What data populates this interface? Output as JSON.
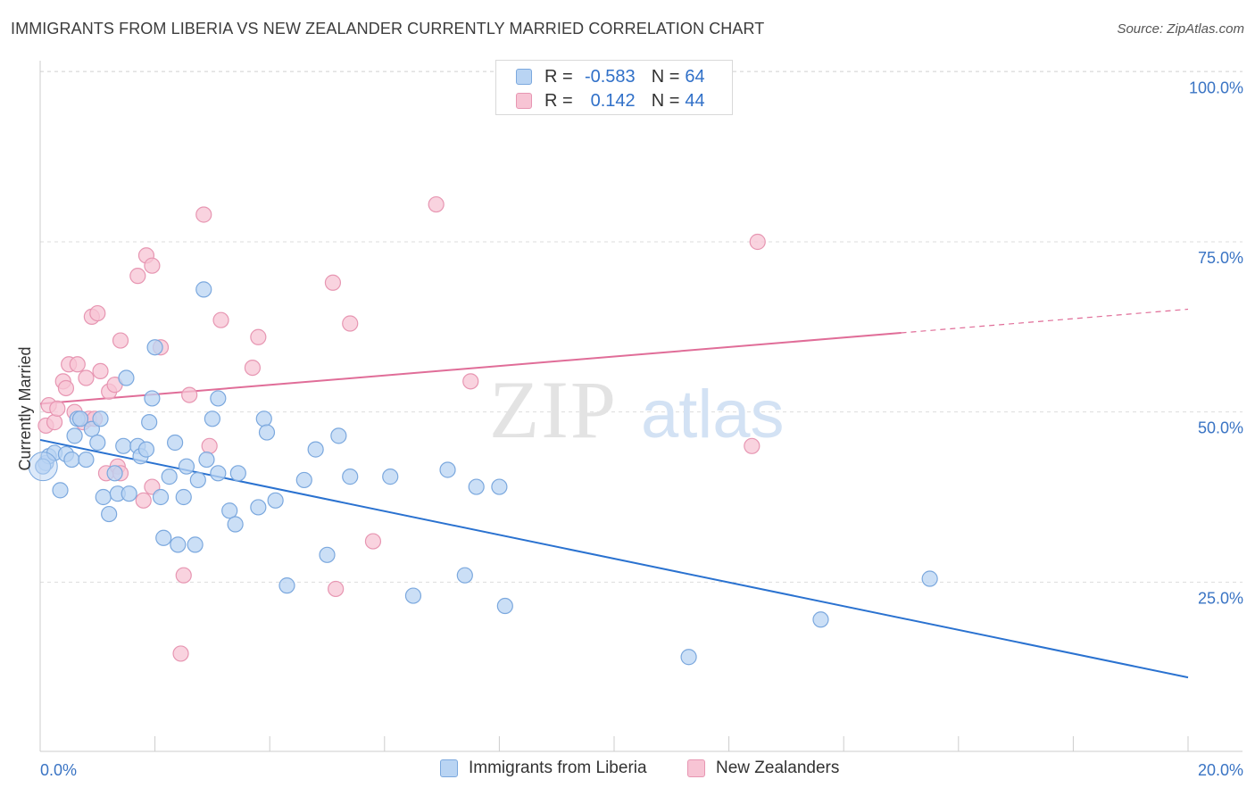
{
  "title": "IMMIGRANTS FROM LIBERIA VS NEW ZEALANDER CURRENTLY MARRIED CORRELATION CHART",
  "source": "Source: ZipAtlas.com",
  "watermark": {
    "zip": "ZIP",
    "atlas": "atlas"
  },
  "legend_top": {
    "rows": [
      {
        "r_label": "R = ",
        "r_value": "-0.583",
        "n_label": "N = ",
        "n_value": "64"
      },
      {
        "r_label": "R = ",
        "r_value": "0.142",
        "n_label": "N = ",
        "n_value": "44"
      }
    ]
  },
  "colors": {
    "blue_fill": "#b9d4f3",
    "blue_stroke": "#7ba8de",
    "blue_line": "#2a72d0",
    "pink_fill": "#f7c4d4",
    "pink_stroke": "#e796b2",
    "pink_line": "#e06d98",
    "grid": "#dddddd",
    "axis_text": "#3a74c4"
  },
  "chart_data": {
    "type": "scatter",
    "ylabel": "Currently Married",
    "xlim": [
      0,
      20
    ],
    "ylim": [
      0,
      105
    ],
    "x_tick_labels": [
      "0.0%",
      "20.0%"
    ],
    "y_tick_labels": [
      "25.0%",
      "50.0%",
      "75.0%",
      "100.0%"
    ],
    "y_ticks": [
      25,
      50,
      75,
      100
    ],
    "grid": true,
    "legend_position": "bottom",
    "series": [
      {
        "name": "Immigrants from Liberia",
        "color": "#b9d4f3",
        "trend": {
          "x": [
            0,
            20
          ],
          "y": [
            45.9,
            11.0
          ],
          "dashed_after": null
        },
        "points": [
          [
            0.1,
            42.5
          ],
          [
            0.15,
            43.5
          ],
          [
            0.25,
            44.0
          ],
          [
            0.35,
            38.5
          ],
          [
            0.45,
            43.8
          ],
          [
            0.55,
            43.0
          ],
          [
            0.6,
            46.5
          ],
          [
            0.65,
            49.0
          ],
          [
            0.7,
            49.0
          ],
          [
            0.8,
            43.0
          ],
          [
            0.9,
            47.5
          ],
          [
            1.0,
            45.5
          ],
          [
            1.05,
            49.0
          ],
          [
            1.1,
            37.5
          ],
          [
            1.2,
            35.0
          ],
          [
            1.3,
            41.0
          ],
          [
            1.35,
            38.0
          ],
          [
            1.5,
            55.0
          ],
          [
            1.55,
            38.0
          ],
          [
            1.45,
            45.0
          ],
          [
            1.7,
            45.0
          ],
          [
            1.75,
            43.5
          ],
          [
            1.85,
            44.5
          ],
          [
            1.9,
            48.5
          ],
          [
            1.95,
            52.0
          ],
          [
            2.0,
            59.5
          ],
          [
            2.1,
            37.5
          ],
          [
            2.15,
            31.5
          ],
          [
            2.25,
            40.5
          ],
          [
            2.35,
            45.5
          ],
          [
            2.4,
            30.5
          ],
          [
            2.5,
            37.5
          ],
          [
            2.55,
            42.0
          ],
          [
            2.7,
            30.5
          ],
          [
            2.75,
            40.0
          ],
          [
            2.85,
            68.0
          ],
          [
            2.9,
            43.0
          ],
          [
            3.0,
            49.0
          ],
          [
            3.1,
            41.0
          ],
          [
            3.1,
            52.0
          ],
          [
            3.3,
            35.5
          ],
          [
            3.4,
            33.5
          ],
          [
            3.45,
            41.0
          ],
          [
            3.8,
            36.0
          ],
          [
            3.9,
            49.0
          ],
          [
            3.95,
            47.0
          ],
          [
            4.1,
            37.0
          ],
          [
            4.3,
            24.5
          ],
          [
            4.6,
            40.0
          ],
          [
            4.8,
            44.5
          ],
          [
            5.0,
            29.0
          ],
          [
            5.2,
            46.5
          ],
          [
            5.4,
            40.5
          ],
          [
            6.1,
            40.5
          ],
          [
            6.5,
            23.0
          ],
          [
            7.1,
            41.5
          ],
          [
            7.4,
            26.0
          ],
          [
            7.6,
            39.0
          ],
          [
            8.0,
            39.0
          ],
          [
            8.1,
            21.5
          ],
          [
            11.3,
            14.0
          ],
          [
            13.6,
            19.5
          ],
          [
            15.5,
            25.5
          ],
          [
            0.05,
            42.0
          ]
        ]
      },
      {
        "name": "New Zealanders",
        "color": "#f7c4d4",
        "trend": {
          "x": [
            0,
            20
          ],
          "y": [
            51.2,
            65.1
          ],
          "dashed_after": 15.0
        },
        "points": [
          [
            0.1,
            48.0
          ],
          [
            0.15,
            51.0
          ],
          [
            0.25,
            48.5
          ],
          [
            0.3,
            50.5
          ],
          [
            0.4,
            54.5
          ],
          [
            0.45,
            53.5
          ],
          [
            0.5,
            57.0
          ],
          [
            0.6,
            50.0
          ],
          [
            0.65,
            57.0
          ],
          [
            0.75,
            48.5
          ],
          [
            0.8,
            55.0
          ],
          [
            0.85,
            49.0
          ],
          [
            0.9,
            64.0
          ],
          [
            0.95,
            49.0
          ],
          [
            1.0,
            64.5
          ],
          [
            1.05,
            56.0
          ],
          [
            1.15,
            41.0
          ],
          [
            1.2,
            53.0
          ],
          [
            1.3,
            54.0
          ],
          [
            1.35,
            42.0
          ],
          [
            1.4,
            41.0
          ],
          [
            1.4,
            60.5
          ],
          [
            1.7,
            70.0
          ],
          [
            1.8,
            37.0
          ],
          [
            1.85,
            73.0
          ],
          [
            1.95,
            39.0
          ],
          [
            1.95,
            71.5
          ],
          [
            2.1,
            59.5
          ],
          [
            2.5,
            26.0
          ],
          [
            2.45,
            14.5
          ],
          [
            2.6,
            52.5
          ],
          [
            2.85,
            79.0
          ],
          [
            2.95,
            45.0
          ],
          [
            3.15,
            63.5
          ],
          [
            3.7,
            56.5
          ],
          [
            3.8,
            61.0
          ],
          [
            5.1,
            69.0
          ],
          [
            5.15,
            24.0
          ],
          [
            5.4,
            63.0
          ],
          [
            5.8,
            31.0
          ],
          [
            6.9,
            80.5
          ],
          [
            7.5,
            54.5
          ],
          [
            12.4,
            45.0
          ],
          [
            12.5,
            75.0
          ]
        ]
      }
    ]
  },
  "legend_bottom": {
    "items": [
      {
        "label": "Immigrants from Liberia"
      },
      {
        "label": "New Zealanders"
      }
    ]
  }
}
